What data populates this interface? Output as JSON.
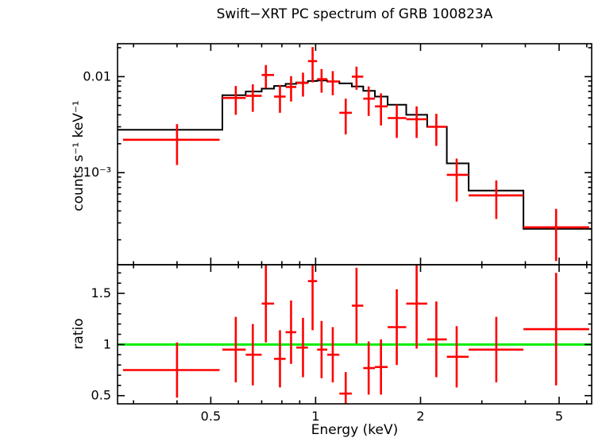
{
  "chart_data": {
    "type": "scatter",
    "title": "Swift−XRT PC spectrum of GRB 100823A",
    "xlabel": "Energy (keV)",
    "xscale": "log",
    "xlim": [
      0.27,
      6.2
    ],
    "xticks": [
      {
        "value": 0.5,
        "label": "0.5"
      },
      {
        "value": 1,
        "label": "1"
      },
      {
        "value": 2,
        "label": "2"
      },
      {
        "value": 5,
        "label": "5"
      }
    ],
    "colors": {
      "data": "#ff0000",
      "model": "#000000",
      "reference": "#00ee00",
      "axes": "#000000"
    },
    "top_panel": {
      "ylabel": "counts s⁻¹ keV⁻¹",
      "yscale": "log",
      "ylim": [
        0.00011,
        0.022
      ],
      "yticks": [
        {
          "value": 0.01,
          "label": "0.01"
        },
        {
          "value": 0.001,
          "label": "10⁻³"
        }
      ],
      "point_color": "#ff0000",
      "points": [
        {
          "e": 0.4,
          "elo": 0.28,
          "ehi": 0.53,
          "y": 0.0022,
          "yerr": 0.001
        },
        {
          "e": 0.59,
          "elo": 0.54,
          "ehi": 0.63,
          "y": 0.006,
          "yerr": 0.002
        },
        {
          "e": 0.66,
          "elo": 0.63,
          "ehi": 0.7,
          "y": 0.0063,
          "yerr": 0.002
        },
        {
          "e": 0.72,
          "elo": 0.7,
          "ehi": 0.76,
          "y": 0.0104,
          "yerr": 0.0028
        },
        {
          "e": 0.79,
          "elo": 0.76,
          "ehi": 0.82,
          "y": 0.0062,
          "yerr": 0.002
        },
        {
          "e": 0.85,
          "elo": 0.82,
          "ehi": 0.88,
          "y": 0.0078,
          "yerr": 0.0023
        },
        {
          "e": 0.92,
          "elo": 0.88,
          "ehi": 0.95,
          "y": 0.0086,
          "yerr": 0.0024
        },
        {
          "e": 0.98,
          "elo": 0.95,
          "ehi": 1.01,
          "y": 0.0145,
          "yerr": 0.0058
        },
        {
          "e": 1.04,
          "elo": 1.01,
          "ehi": 1.08,
          "y": 0.0094,
          "yerr": 0.0026
        },
        {
          "e": 1.12,
          "elo": 1.08,
          "ehi": 1.17,
          "y": 0.0089,
          "yerr": 0.0025
        },
        {
          "e": 1.22,
          "elo": 1.17,
          "ehi": 1.27,
          "y": 0.0042,
          "yerr": 0.0017
        },
        {
          "e": 1.31,
          "elo": 1.27,
          "ehi": 1.37,
          "y": 0.01,
          "yerr": 0.0027
        },
        {
          "e": 1.42,
          "elo": 1.37,
          "ehi": 1.48,
          "y": 0.0059,
          "yerr": 0.002
        },
        {
          "e": 1.54,
          "elo": 1.48,
          "ehi": 1.61,
          "y": 0.0049,
          "yerr": 0.0018
        },
        {
          "e": 1.71,
          "elo": 1.61,
          "ehi": 1.82,
          "y": 0.0037,
          "yerr": 0.0014
        },
        {
          "e": 1.95,
          "elo": 1.82,
          "ehi": 2.09,
          "y": 0.0036,
          "yerr": 0.0013
        },
        {
          "e": 2.22,
          "elo": 2.09,
          "ehi": 2.38,
          "y": 0.003,
          "yerr": 0.0011
        },
        {
          "e": 2.54,
          "elo": 2.38,
          "ehi": 2.75,
          "y": 0.00095,
          "yerr": 0.00045
        },
        {
          "e": 3.3,
          "elo": 2.75,
          "ehi": 3.95,
          "y": 0.00058,
          "yerr": 0.00025
        },
        {
          "e": 4.9,
          "elo": 3.95,
          "ehi": 6.1,
          "y": 0.00027,
          "yerr": 0.00015
        }
      ],
      "model_step": {
        "color": "#000000",
        "edges": [
          0.27,
          0.54,
          0.63,
          0.7,
          0.76,
          0.82,
          0.88,
          0.95,
          1.01,
          1.08,
          1.17,
          1.27,
          1.37,
          1.48,
          1.61,
          1.82,
          2.09,
          2.38,
          2.75,
          3.95,
          6.2
        ],
        "values": [
          0.0028,
          0.0064,
          0.007,
          0.0075,
          0.008,
          0.0084,
          0.0087,
          0.009,
          0.0091,
          0.0089,
          0.0085,
          0.0079,
          0.0071,
          0.0062,
          0.0051,
          0.004,
          0.003,
          0.00125,
          0.00065,
          0.00026
        ]
      }
    },
    "bottom_panel": {
      "ylabel": "ratio",
      "yscale": "linear",
      "ylim": [
        0.42,
        1.78
      ],
      "yticks": [
        {
          "value": 0.5,
          "label": "0.5"
        },
        {
          "value": 1,
          "label": "1"
        },
        {
          "value": 1.5,
          "label": "1.5"
        }
      ],
      "minor_step": 0.1,
      "reference_line": {
        "y": 1,
        "color": "#00ee00"
      },
      "point_color": "#ff0000",
      "points": [
        {
          "e": 0.4,
          "elo": 0.28,
          "ehi": 0.53,
          "y": 0.75,
          "yerr": 0.27
        },
        {
          "e": 0.59,
          "elo": 0.54,
          "ehi": 0.63,
          "y": 0.95,
          "yerr": 0.32
        },
        {
          "e": 0.66,
          "elo": 0.63,
          "ehi": 0.7,
          "y": 0.9,
          "yerr": 0.3
        },
        {
          "e": 0.72,
          "elo": 0.7,
          "ehi": 0.76,
          "y": 1.4,
          "yerr": 0.38
        },
        {
          "e": 0.79,
          "elo": 0.76,
          "ehi": 0.82,
          "y": 0.86,
          "yerr": 0.28
        },
        {
          "e": 0.85,
          "elo": 0.82,
          "ehi": 0.88,
          "y": 1.12,
          "yerr": 0.31
        },
        {
          "e": 0.92,
          "elo": 0.88,
          "ehi": 0.95,
          "y": 0.97,
          "yerr": 0.29
        },
        {
          "e": 0.98,
          "elo": 0.95,
          "ehi": 1.01,
          "y": 1.62,
          "yerr": 0.48
        },
        {
          "e": 1.04,
          "elo": 1.01,
          "ehi": 1.08,
          "y": 0.95,
          "yerr": 0.28
        },
        {
          "e": 1.12,
          "elo": 1.08,
          "ehi": 1.17,
          "y": 0.9,
          "yerr": 0.27
        },
        {
          "e": 1.22,
          "elo": 1.17,
          "ehi": 1.27,
          "y": 0.52,
          "yerr": 0.21
        },
        {
          "e": 1.31,
          "elo": 1.27,
          "ehi": 1.37,
          "y": 1.38,
          "yerr": 0.37
        },
        {
          "e": 1.42,
          "elo": 1.37,
          "ehi": 1.48,
          "y": 0.77,
          "yerr": 0.26
        },
        {
          "e": 1.54,
          "elo": 1.48,
          "ehi": 1.61,
          "y": 0.78,
          "yerr": 0.27
        },
        {
          "e": 1.71,
          "elo": 1.61,
          "ehi": 1.82,
          "y": 1.17,
          "yerr": 0.37
        },
        {
          "e": 1.95,
          "elo": 1.82,
          "ehi": 2.09,
          "y": 1.4,
          "yerr": 0.44
        },
        {
          "e": 2.22,
          "elo": 2.09,
          "ehi": 2.38,
          "y": 1.05,
          "yerr": 0.37
        },
        {
          "e": 2.54,
          "elo": 2.38,
          "ehi": 2.75,
          "y": 0.88,
          "yerr": 0.3
        },
        {
          "e": 3.3,
          "elo": 2.75,
          "ehi": 3.95,
          "y": 0.95,
          "yerr": 0.32
        },
        {
          "e": 4.9,
          "elo": 3.95,
          "ehi": 6.1,
          "y": 1.15,
          "yerr": 0.55
        }
      ]
    }
  }
}
